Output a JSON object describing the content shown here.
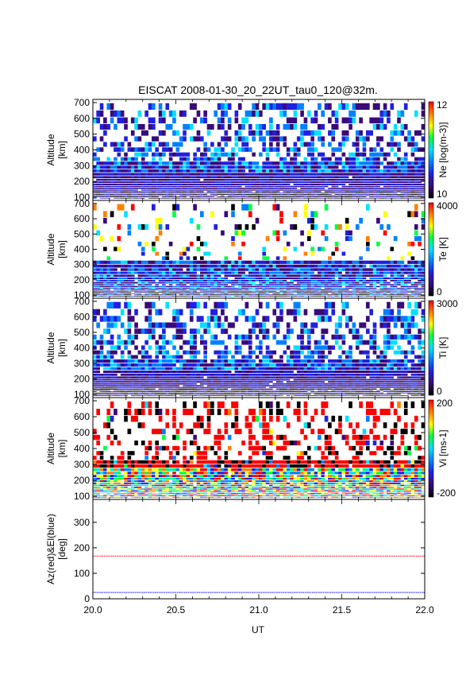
{
  "title": "EISCAT 2008-01-30_20_22UT_tau0_120@32m.",
  "xlabel": "UT",
  "x_ticks": [
    "20.0",
    "20.5",
    "21.0",
    "21.5",
    "22.0"
  ],
  "chart_data": [
    {
      "type": "heatmap",
      "parameter": "Ne",
      "ylabel": [
        "Altitude",
        "[km]"
      ],
      "yticks": [
        100,
        200,
        300,
        400,
        500,
        600,
        700
      ],
      "ylim": [
        80,
        720
      ],
      "xlim": [
        20.0,
        22.0
      ],
      "colorbar_label": "Ne [log(m-3)]",
      "colorbar_ticks": [
        "12",
        "10"
      ],
      "colorbar_range": [
        10,
        12
      ],
      "colormap": [
        "#000000",
        "#3a0a78",
        "#2020e0",
        "#0080ff",
        "#00e0ff",
        "#00ff40",
        "#ffff00",
        "#ff8000",
        "#ff0000"
      ],
      "time_bins": 96,
      "profile": "dense-low"
    },
    {
      "type": "heatmap",
      "parameter": "Te",
      "ylabel": [
        "Altitude",
        "[km]"
      ],
      "yticks": [
        100,
        200,
        300,
        400,
        500,
        600,
        700
      ],
      "ylim": [
        80,
        720
      ],
      "xlim": [
        20.0,
        22.0
      ],
      "colorbar_label": "Te [K]",
      "colorbar_ticks": [
        "4000",
        "0"
      ],
      "colorbar_range": [
        0,
        4000
      ],
      "colormap": [
        "#000000",
        "#3a0a78",
        "#2020e0",
        "#0080ff",
        "#00e0ff",
        "#00ff40",
        "#ffff00",
        "#ff8000",
        "#ff0000"
      ],
      "time_bins": 96,
      "profile": "sparse-high"
    },
    {
      "type": "heatmap",
      "parameter": "Ti",
      "ylabel": [
        "Altitude",
        "[km]"
      ],
      "yticks": [
        100,
        200,
        300,
        400,
        500,
        600,
        700
      ],
      "ylim": [
        80,
        720
      ],
      "xlim": [
        20.0,
        22.0
      ],
      "colorbar_label": "Ti [K]",
      "colorbar_ticks": [
        "3000",
        "0"
      ],
      "colorbar_range": [
        0,
        3000
      ],
      "colormap": [
        "#000000",
        "#3a0a78",
        "#2020e0",
        "#0080ff",
        "#00e0ff",
        "#00ff40",
        "#ffff00",
        "#ff8000",
        "#ff0000"
      ],
      "time_bins": 96,
      "profile": "dense-low"
    },
    {
      "type": "heatmap",
      "parameter": "Vi",
      "ylabel": [
        "Altitude",
        "[km]"
      ],
      "yticks": [
        100,
        200,
        300,
        400,
        500,
        600,
        700
      ],
      "ylim": [
        80,
        720
      ],
      "xlim": [
        20.0,
        22.0
      ],
      "colorbar_label": "Vi [ms-1]",
      "colorbar_ticks": [
        "200",
        "-200"
      ],
      "colorbar_range": [
        -200,
        200
      ],
      "colormap": [
        "#000000",
        "#3a0a78",
        "#2020e0",
        "#0080ff",
        "#00e0ff",
        "#00ff40",
        "#ffff00",
        "#ff8000",
        "#ff0000"
      ],
      "time_bins": 96,
      "profile": "velocity"
    },
    {
      "type": "line",
      "ylabel": [
        "Az(red)&El(blue)",
        "[deg]"
      ],
      "yticks": [
        0,
        100,
        200,
        300
      ],
      "ylim": [
        0,
        390
      ],
      "xlim": [
        20.0,
        22.0
      ],
      "series": [
        {
          "color": "#ff0000",
          "x": [
            20.0,
            22.0
          ],
          "values": [
            168,
            168
          ]
        },
        {
          "color": "#0000ff",
          "x": [
            20.0,
            22.0
          ],
          "values": [
            25,
            25
          ]
        }
      ]
    }
  ]
}
